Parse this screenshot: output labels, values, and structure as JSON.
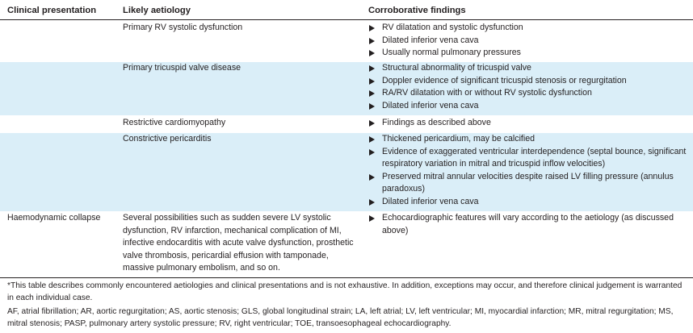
{
  "header": {
    "col1": "Clinical presentation",
    "col2": "Likely aetiology",
    "col3": "Corroborative findings"
  },
  "rows": [
    {
      "presentation": "",
      "aetiology": "Primary RV systolic dysfunction",
      "findings": [
        "RV dilatation and systolic dysfunction",
        "Dilated inferior vena cava",
        "Usually normal pulmonary pressures"
      ]
    },
    {
      "presentation": "",
      "aetiology": "Primary tricuspid valve disease",
      "findings": [
        "Structural abnormality of tricuspid valve",
        "Doppler evidence of significant tricuspid stenosis or regurgitation",
        "RA/RV dilatation with or without RV systolic dysfunction",
        "Dilated inferior vena cava"
      ]
    },
    {
      "presentation": "",
      "aetiology": "Restrictive cardiomyopathy",
      "findings": [
        "Findings as described above"
      ]
    },
    {
      "presentation": "",
      "aetiology": "Constrictive pericarditis",
      "findings": [
        "Thickened pericardium, may be calcified",
        "Evidence of exaggerated ventricular interdependence (septal bounce, significant respiratory variation in mitral and tricuspid inflow velocities)",
        "Preserved mitral annular velocities despite raised LV filling pressure (annulus paradoxus)",
        "Dilated inferior vena cava"
      ]
    },
    {
      "presentation": "Haemodynamic collapse",
      "aetiology": "Several possibilities such as sudden severe LV systolic dysfunction, RV infarction, mechanical complication of MI, infective endocarditis with acute valve dysfunction, prosthetic valve thrombosis, pericardial effusion with tamponade, massive pulmonary embolism, and so on.",
      "findings": [
        "Echocardiographic features will vary according to the aetiology (as discussed above)"
      ]
    }
  ],
  "footnotes": {
    "note": "*This table describes commonly encountered aetiologies and clinical presentations and is not exhaustive. In addition, exceptions may occur, and therefore clinical judgement is warranted in each individual case.",
    "abbreviations": "AF, atrial fibrillation; AR, aortic regurgitation; AS, aortic stenosis; GLS, global longitudinal strain; LA, left atrial; LV, left ventricular; MI, myocardial infarction; MR, mitral regurgitation; MS, mitral stenosis; PASP, pulmonary artery systolic pressure; RV, right ventricular; TOE, transoesophageal echocardiography."
  },
  "colors": {
    "row_shade": "#daeef8",
    "text": "#231f20"
  },
  "icons": {
    "bullet": "triangle-bullet-icon"
  }
}
